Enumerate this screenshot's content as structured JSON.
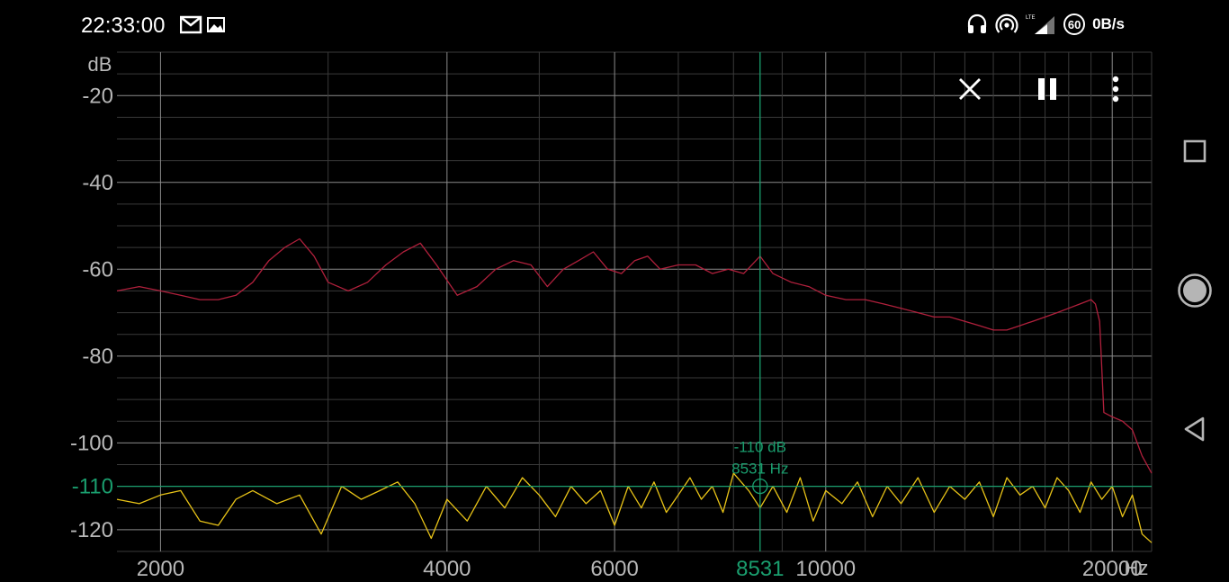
{
  "status_bar": {
    "time": "22:33:00",
    "network_speed": "0B/s",
    "refresh_rate_badge": "60",
    "network_type": "LTE",
    "icons": [
      "gmail-icon",
      "gallery-icon",
      "headphones-icon",
      "hotspot-icon",
      "signal-icon",
      "refresh-rate-icon"
    ]
  },
  "toolbar": {
    "icons": [
      "close-icon",
      "pause-icon",
      "more-vert-icon"
    ]
  },
  "nav_bar": {
    "icons": [
      "recents-icon",
      "home-icon",
      "back-icon"
    ]
  },
  "colors": {
    "background": "#000000",
    "grid_major": "#8a8a8a",
    "grid_minor": "#3a3a3a",
    "series_red": "#b0203c",
    "series_yellow": "#e8c317",
    "cursor": "#1a9e6e",
    "axis_text": "#b8b8b8"
  },
  "chart_data": {
    "type": "line",
    "xscale": "log",
    "xlabel": "Hz",
    "ylabel": "dB",
    "xlim": [
      1800,
      22000
    ],
    "ylim": [
      -125,
      -10
    ],
    "x_ticks": [
      2000,
      4000,
      6000,
      10000,
      20000
    ],
    "x_tick_labels": [
      "2000",
      "4000",
      "6000",
      "10000",
      "20000"
    ],
    "y_ticks": [
      -20,
      -40,
      -60,
      -80,
      -100,
      -120
    ],
    "y_tick_labels": [
      "-20",
      "-40",
      "-60",
      "-80",
      "-100",
      "-120"
    ],
    "grid": true,
    "cursor": {
      "freq": 8531,
      "db": -110,
      "freq_label": "8531",
      "readout_db": "-110 dB",
      "readout_hz": "8531 Hz",
      "y_label": "-110"
    },
    "series": [
      {
        "color": "#b0203c",
        "x": [
          1800,
          1900,
          2000,
          2100,
          2200,
          2300,
          2400,
          2500,
          2600,
          2700,
          2800,
          2900,
          3000,
          3150,
          3300,
          3450,
          3600,
          3750,
          3900,
          4100,
          4300,
          4500,
          4700,
          4900,
          5100,
          5300,
          5500,
          5700,
          5900,
          6100,
          6300,
          6500,
          6700,
          7000,
          7300,
          7600,
          7900,
          8200,
          8531,
          8800,
          9200,
          9600,
          10000,
          10500,
          11000,
          11500,
          12000,
          12500,
          13000,
          13500,
          14000,
          14500,
          15000,
          15500,
          16000,
          16500,
          17000,
          17500,
          18000,
          18500,
          19000,
          19200,
          19400,
          19600,
          20000,
          20500,
          21000,
          21500,
          22000
        ],
        "y": [
          -65,
          -64,
          -65,
          -66,
          -67,
          -67,
          -66,
          -63,
          -58,
          -55,
          -53,
          -57,
          -63,
          -65,
          -63,
          -59,
          -56,
          -54,
          -59,
          -66,
          -64,
          -60,
          -58,
          -59,
          -64,
          -60,
          -58,
          -56,
          -60,
          -61,
          -58,
          -57,
          -60,
          -59,
          -59,
          -61,
          -60,
          -61,
          -57,
          -61,
          -63,
          -64,
          -66,
          -67,
          -67,
          -68,
          -69,
          -70,
          -71,
          -71,
          -72,
          -73,
          -74,
          -74,
          -73,
          -72,
          -71,
          -70,
          -69,
          -68,
          -67,
          -68,
          -72,
          -93,
          -94,
          -95,
          -97,
          -103,
          -107
        ]
      },
      {
        "color": "#e8c317",
        "x": [
          1800,
          1900,
          2000,
          2100,
          2200,
          2300,
          2400,
          2500,
          2650,
          2800,
          2950,
          3100,
          3250,
          3400,
          3550,
          3700,
          3850,
          4000,
          4200,
          4400,
          4600,
          4800,
          5000,
          5200,
          5400,
          5600,
          5800,
          6000,
          6200,
          6400,
          6600,
          6800,
          7000,
          7200,
          7400,
          7600,
          7800,
          8000,
          8300,
          8531,
          8800,
          9100,
          9400,
          9700,
          10000,
          10400,
          10800,
          11200,
          11600,
          12000,
          12500,
          13000,
          13500,
          14000,
          14500,
          15000,
          15500,
          16000,
          16500,
          17000,
          17500,
          18000,
          18500,
          19000,
          19500,
          20000,
          20500,
          21000,
          21500,
          22000
        ],
        "y": [
          -113,
          -114,
          -112,
          -111,
          -118,
          -119,
          -113,
          -111,
          -114,
          -112,
          -121,
          -110,
          -113,
          -111,
          -109,
          -114,
          -122,
          -113,
          -118,
          -110,
          -115,
          -108,
          -112,
          -117,
          -110,
          -114,
          -111,
          -119,
          -110,
          -115,
          -109,
          -116,
          -112,
          -108,
          -113,
          -110,
          -116,
          -107,
          -111,
          -115,
          -110,
          -116,
          -108,
          -118,
          -111,
          -114,
          -109,
          -117,
          -110,
          -114,
          -108,
          -116,
          -110,
          -113,
          -109,
          -117,
          -108,
          -112,
          -110,
          -115,
          -108,
          -111,
          -116,
          -109,
          -113,
          -110,
          -117,
          -112,
          -121,
          -123
        ]
      }
    ]
  }
}
